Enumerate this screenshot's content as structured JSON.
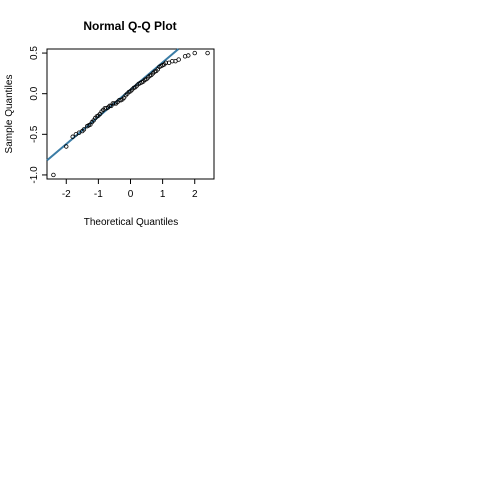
{
  "chart_data": {
    "type": "scatter",
    "title": "Normal Q-Q Plot",
    "xlabel": "Theoretical Quantiles",
    "ylabel": "Sample Quantiles",
    "xlim": [
      -2.6,
      2.6
    ],
    "ylim": [
      -1.05,
      0.55
    ],
    "x_ticks": [
      -2,
      -1,
      0,
      1,
      2
    ],
    "x_tick_labels": [
      "-2",
      "-1",
      "0",
      "1",
      "2"
    ],
    "y_ticks": [
      -1.0,
      -0.5,
      0.0,
      0.5
    ],
    "y_tick_labels": [
      "-1.0",
      "-0.5",
      "0.0",
      "0.5"
    ],
    "grid": false,
    "point_style": "open-circle",
    "points": {
      "x": [
        -2.4,
        -2.0,
        -1.8,
        -1.7,
        -1.6,
        -1.5,
        -1.45,
        -1.35,
        -1.3,
        -1.25,
        -1.2,
        -1.15,
        -1.1,
        -1.05,
        -1.0,
        -0.95,
        -0.9,
        -0.85,
        -0.8,
        -0.75,
        -0.7,
        -0.65,
        -0.6,
        -0.55,
        -0.5,
        -0.45,
        -0.4,
        -0.35,
        -0.3,
        -0.25,
        -0.2,
        -0.15,
        -0.1,
        -0.05,
        0.0,
        0.05,
        0.1,
        0.15,
        0.2,
        0.25,
        0.3,
        0.35,
        0.4,
        0.45,
        0.5,
        0.55,
        0.6,
        0.65,
        0.7,
        0.75,
        0.8,
        0.85,
        0.9,
        0.95,
        1.0,
        1.05,
        1.1,
        1.2,
        1.3,
        1.4,
        1.5,
        1.7,
        1.8,
        2.0,
        2.4
      ],
      "y": [
        -1.0,
        -0.65,
        -0.53,
        -0.5,
        -0.48,
        -0.46,
        -0.44,
        -0.4,
        -0.39,
        -0.38,
        -0.35,
        -0.33,
        -0.3,
        -0.28,
        -0.27,
        -0.25,
        -0.22,
        -0.2,
        -0.18,
        -0.18,
        -0.17,
        -0.15,
        -0.15,
        -0.12,
        -0.12,
        -0.12,
        -0.1,
        -0.08,
        -0.08,
        -0.07,
        -0.05,
        -0.02,
        0.0,
        0.02,
        0.03,
        0.05,
        0.07,
        0.08,
        0.1,
        0.12,
        0.13,
        0.14,
        0.15,
        0.17,
        0.18,
        0.2,
        0.22,
        0.23,
        0.25,
        0.27,
        0.28,
        0.3,
        0.33,
        0.34,
        0.35,
        0.36,
        0.38,
        0.38,
        0.4,
        0.4,
        0.42,
        0.46,
        0.47,
        0.5,
        0.5
      ]
    },
    "reference_line": {
      "intercept": 0.05,
      "slope": 0.335,
      "color": "#3a7ca5"
    }
  }
}
